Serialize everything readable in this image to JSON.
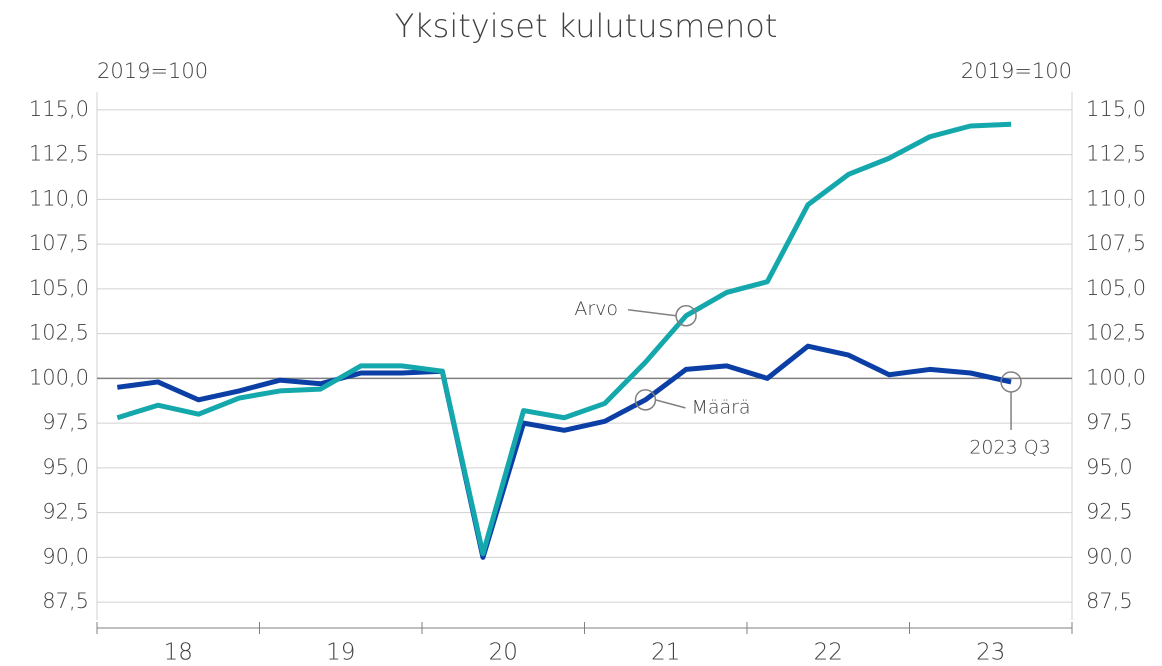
{
  "chart_data": {
    "type": "line",
    "title": "Yksityiset kulutusmenot",
    "ylabel": "2019=100",
    "y2label": "2019=100",
    "year_labels": [
      "18",
      "19",
      "20",
      "21",
      "22",
      "23"
    ],
    "series": [
      {
        "name": "Määrä",
        "color": "#0b3fa6",
        "values": [
          99.5,
          99.8,
          98.8,
          99.3,
          99.9,
          99.7,
          100.3,
          100.3,
          100.4,
          90.0,
          97.5,
          97.1,
          97.6,
          98.8,
          100.5,
          100.7,
          100.0,
          101.8,
          101.3,
          100.2,
          100.5,
          100.3,
          99.8
        ]
      },
      {
        "name": "Arvo",
        "color": "#14a8ad",
        "values": [
          97.8,
          98.5,
          98.0,
          98.9,
          99.3,
          99.4,
          100.7,
          100.7,
          100.4,
          90.2,
          98.2,
          97.8,
          98.6,
          100.9,
          103.5,
          104.8,
          105.4,
          109.7,
          111.4,
          112.3,
          113.5,
          114.1,
          114.2
        ]
      }
    ],
    "annotations": [
      {
        "text": "Arvo",
        "series": 1,
        "index": 14
      },
      {
        "text": "Määrä",
        "series": 0,
        "index": 13
      },
      {
        "text": "2023 Q3",
        "series": 0,
        "index": 22
      }
    ],
    "reference_line": 100,
    "ylim": [
      86.5,
      116
    ],
    "yticks": [
      {
        "value": 87.5,
        "label": "87,5"
      },
      {
        "value": 90,
        "label": "90,0"
      },
      {
        "value": 92.5,
        "label": "92,5"
      },
      {
        "value": 95,
        "label": "95,0"
      },
      {
        "value": 97.5,
        "label": "97,5"
      },
      {
        "value": 100,
        "label": "100,0"
      },
      {
        "value": 102.5,
        "label": "102,5"
      },
      {
        "value": 105,
        "label": "105,0"
      },
      {
        "value": 107.5,
        "label": "107,5"
      },
      {
        "value": 110,
        "label": "110,0"
      },
      {
        "value": 112.5,
        "label": "112,5"
      },
      {
        "value": 115,
        "label": "115,0"
      }
    ],
    "y2lim": [
      86.5,
      116
    ],
    "y2ticks": [
      {
        "value": 87.5,
        "label": "87,5"
      },
      {
        "value": 90,
        "label": "90,0"
      },
      {
        "value": 92.5,
        "label": "92,5"
      },
      {
        "value": 95,
        "label": "95,0"
      },
      {
        "value": 97.5,
        "label": "97,5"
      },
      {
        "value": 100,
        "label": "100,0"
      },
      {
        "value": 102.5,
        "label": "102,5"
      },
      {
        "value": 105,
        "label": "105,0"
      },
      {
        "value": 107.5,
        "label": "107,5"
      },
      {
        "value": 110,
        "label": "110,0"
      },
      {
        "value": 112.5,
        "label": "112,5"
      },
      {
        "value": 115,
        "label": "115,0"
      }
    ],
    "grid": true
  }
}
